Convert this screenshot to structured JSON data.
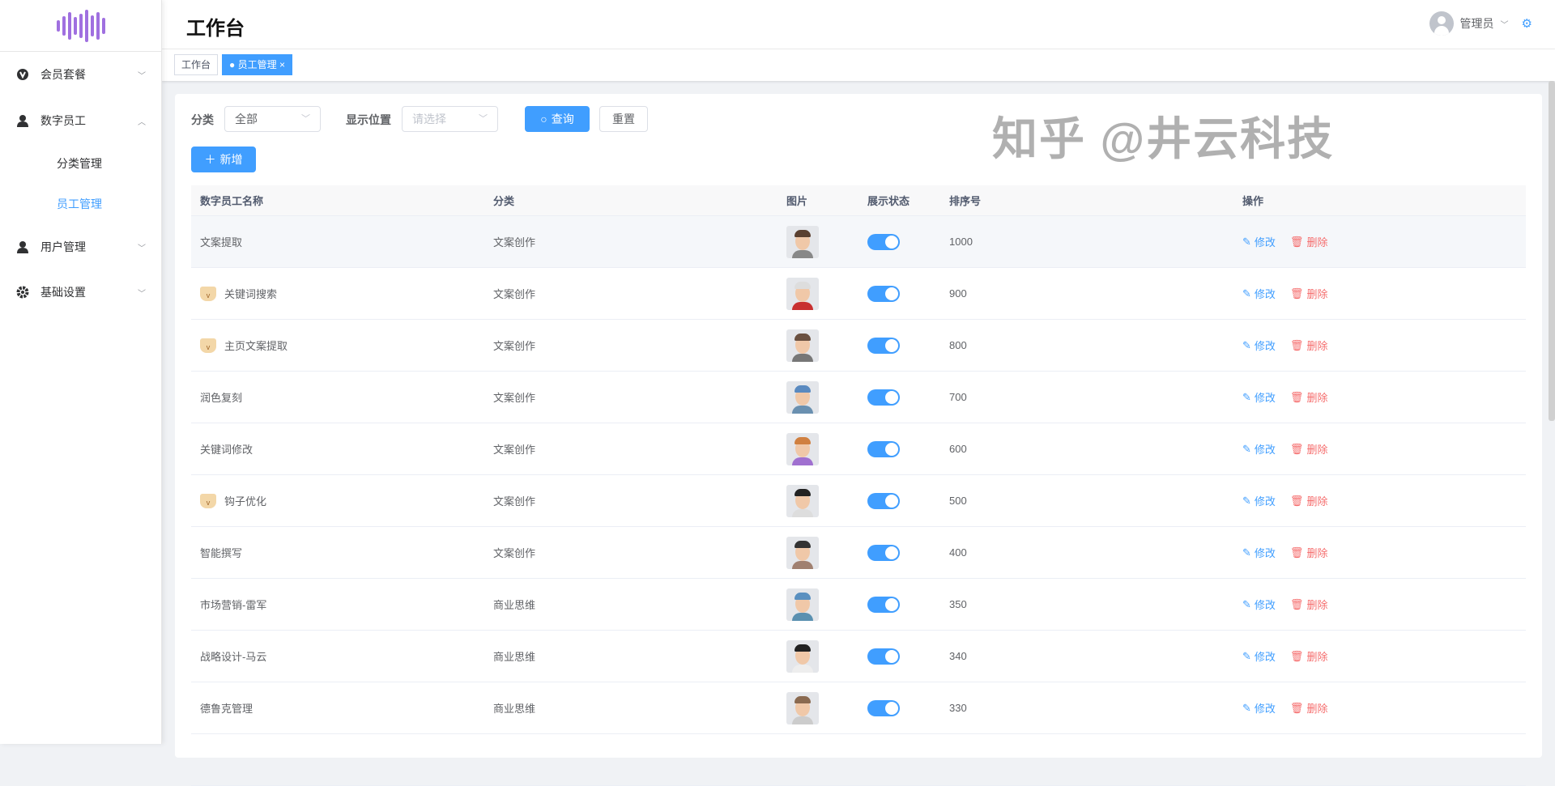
{
  "sidebar": {
    "items": [
      {
        "label": "会员套餐",
        "icon": "vip-icon",
        "expanded": false
      },
      {
        "label": "数字员工",
        "icon": "user-icon",
        "expanded": true,
        "children": [
          {
            "label": "分类管理",
            "active": false
          },
          {
            "label": "员工管理",
            "active": true
          }
        ]
      },
      {
        "label": "用户管理",
        "icon": "user-icon",
        "expanded": false
      },
      {
        "label": "基础设置",
        "icon": "gear-icon",
        "expanded": false
      }
    ]
  },
  "header": {
    "title": "工作台",
    "user": "管理员"
  },
  "tags": [
    {
      "label": "工作台",
      "active": false
    },
    {
      "label": "员工管理",
      "active": true
    }
  ],
  "filters": {
    "category_label": "分类",
    "category_value": "全部",
    "position_label": "显示位置",
    "position_placeholder": "请选择",
    "query": "查询",
    "reset": "重置",
    "add": "新增"
  },
  "table": {
    "columns": [
      "数字员工名称",
      "分类",
      "图片",
      "展示状态",
      "排序号",
      "操作"
    ],
    "edit_label": "修改",
    "delete_label": "删除",
    "rows": [
      {
        "name": "文案提取",
        "vip": false,
        "category": "文案创作",
        "status": true,
        "order": "1000",
        "hair": "#5a4030",
        "shirt": "#888"
      },
      {
        "name": "关键词搜索",
        "vip": true,
        "category": "文案创作",
        "status": true,
        "order": "900",
        "hair": "#ddd",
        "shirt": "#c83030"
      },
      {
        "name": "主页文案提取",
        "vip": true,
        "category": "文案创作",
        "status": true,
        "order": "800",
        "hair": "#6a5040",
        "shirt": "#777"
      },
      {
        "name": "润色复刻",
        "vip": false,
        "category": "文案创作",
        "status": true,
        "order": "700",
        "hair": "#5a8ac0",
        "shirt": "#6a90b0"
      },
      {
        "name": "关键词修改",
        "vip": false,
        "category": "文案创作",
        "status": true,
        "order": "600",
        "hair": "#d08040",
        "shirt": "#a070d0"
      },
      {
        "name": "钩子优化",
        "vip": true,
        "category": "文案创作",
        "status": true,
        "order": "500",
        "hair": "#222",
        "shirt": "#ddd"
      },
      {
        "name": "智能撰写",
        "vip": false,
        "category": "文案创作",
        "status": true,
        "order": "400",
        "hair": "#333",
        "shirt": "#a08070"
      },
      {
        "name": "市场营销-雷军",
        "vip": false,
        "category": "商业思维",
        "status": true,
        "order": "350",
        "hair": "#5a90c0",
        "shirt": "#5a90b0"
      },
      {
        "name": "战略设计-马云",
        "vip": false,
        "category": "商业思维",
        "status": true,
        "order": "340",
        "hair": "#222",
        "shirt": "#eee"
      },
      {
        "name": "德鲁克管理",
        "vip": false,
        "category": "商业思维",
        "status": true,
        "order": "330",
        "hair": "#8a6a50",
        "shirt": "#ccc"
      }
    ]
  },
  "watermark": "知乎 @井云科技",
  "colors": {
    "primary": "#409eff",
    "danger": "#f56c6c",
    "logo": "#a070e0"
  }
}
